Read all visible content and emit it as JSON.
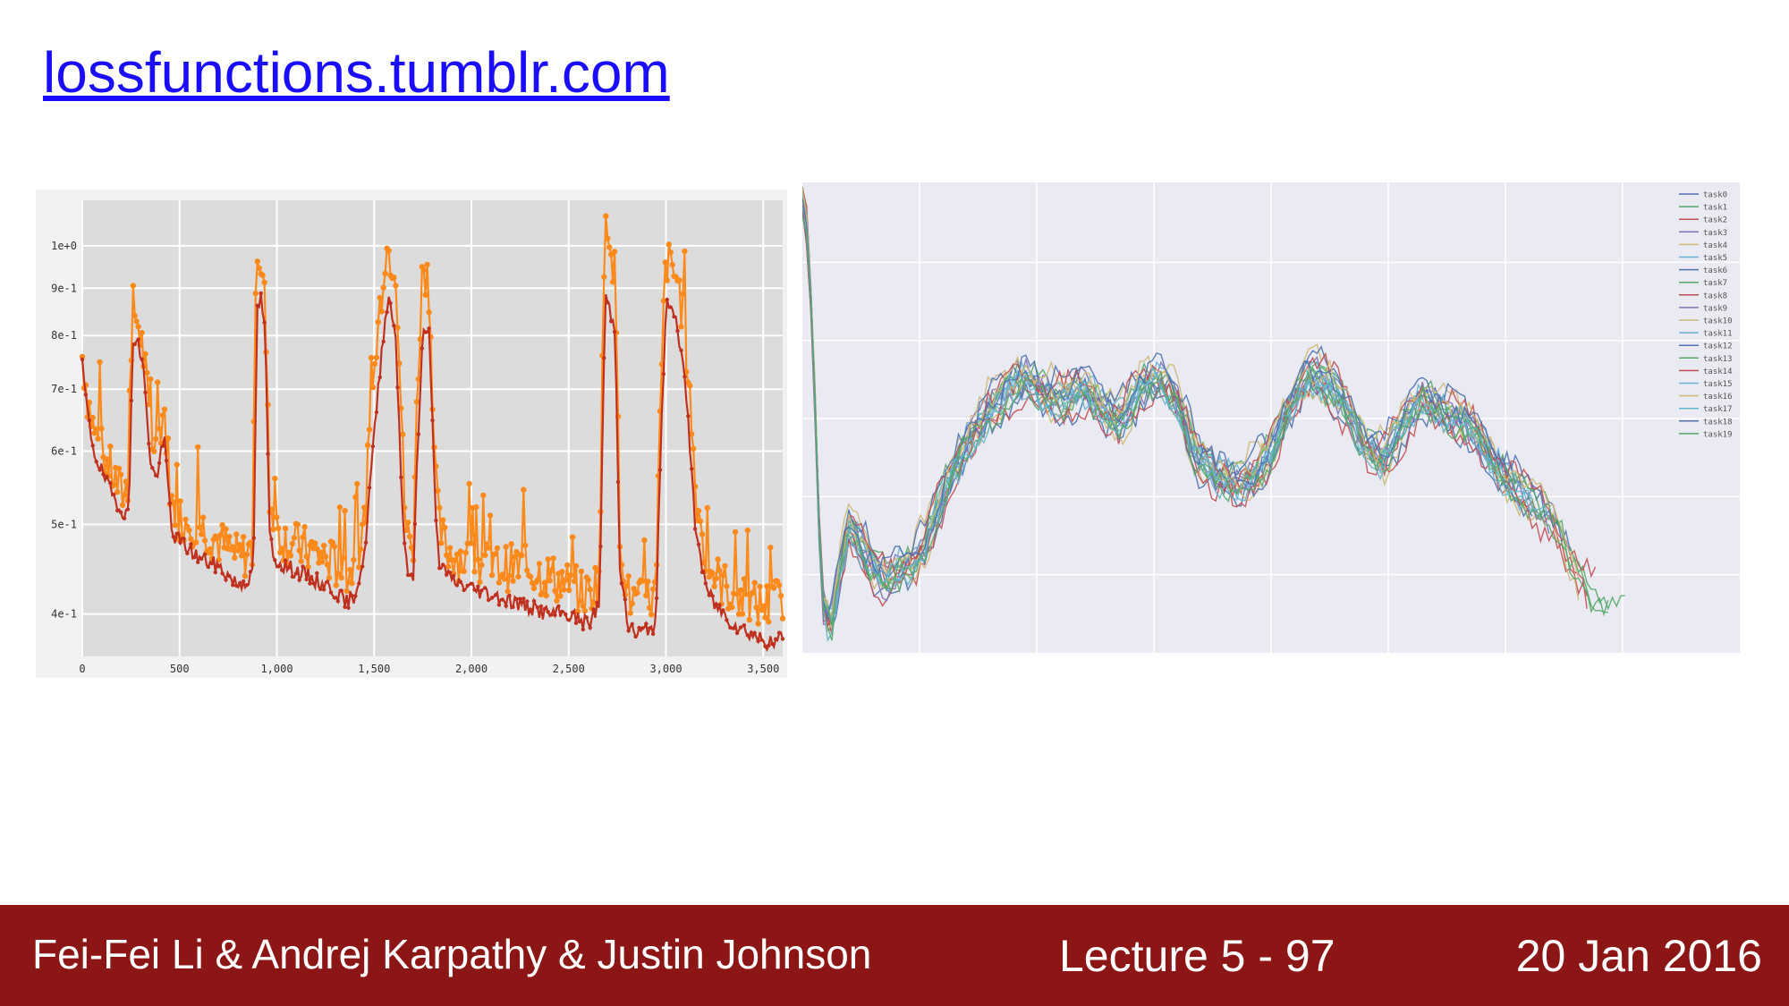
{
  "slide": {
    "link_text": "lossfunctions.tumblr.com",
    "footer": {
      "authors": "Fei-Fei Li & Andrej Karpathy & Justin Johnson",
      "lecture": "Lecture 5 - 97",
      "date": "20 Jan 2016"
    }
  },
  "colors": {
    "footer_bg": "#8c1515",
    "link": "#1a0dff",
    "left_plot_bg": "#dcdcdc",
    "left_raw": "#ff8a1c",
    "left_smooth": "#c0301e",
    "right_plot_bg": "#eaeaf2"
  },
  "chart_data": [
    {
      "type": "line",
      "y_scale": "log",
      "xlim": [
        0,
        3600
      ],
      "ylim": [
        0.36,
        1.12
      ],
      "x_ticks": [
        0,
        500,
        1000,
        1500,
        2000,
        2500,
        3000,
        3500
      ],
      "x_tick_labels": [
        "0",
        "500",
        "1,000",
        "1,500",
        "2,000",
        "2,500",
        "3,000",
        "3,500"
      ],
      "y_ticks": [
        0.4,
        0.5,
        0.6,
        0.7,
        0.8,
        0.9,
        1.0
      ],
      "y_tick_labels": [
        "4e-1",
        "5e-1",
        "6e-1",
        "7e-1",
        "8e-1",
        "9e-1",
        "1e+0"
      ],
      "grid": true,
      "series": [
        {
          "role": "raw",
          "color": "#ff8a1c",
          "x": [
            0,
            30,
            60,
            100,
            150,
            200,
            240,
            260,
            290,
            320,
            350,
            380,
            420,
            460,
            500,
            600,
            700,
            800,
            880,
            900,
            920,
            940,
            960,
            980,
            1050,
            1150,
            1250,
            1320,
            1350,
            1400,
            1450,
            1500,
            1560,
            1580,
            1610,
            1640,
            1660,
            1680,
            1700,
            1750,
            1780,
            1810,
            1830,
            1870,
            1950,
            2100,
            2250,
            2400,
            2500,
            2600,
            2660,
            2690,
            2720,
            2740,
            2760,
            2800,
            2850,
            2950,
            3000,
            3020,
            3060,
            3100,
            3150,
            3200,
            3250,
            3350,
            3450,
            3550,
            3600
          ],
          "y": [
            0.76,
            0.68,
            0.63,
            0.6,
            0.57,
            0.54,
            0.55,
            0.86,
            0.82,
            0.75,
            0.62,
            0.6,
            0.67,
            0.52,
            0.51,
            0.5,
            0.48,
            0.46,
            0.47,
            1.0,
            0.95,
            0.86,
            0.55,
            0.5,
            0.48,
            0.47,
            0.46,
            0.45,
            0.44,
            0.45,
            0.5,
            0.72,
            1.0,
            0.98,
            0.96,
            0.65,
            0.5,
            0.48,
            0.47,
            0.96,
            0.92,
            0.6,
            0.5,
            0.47,
            0.46,
            0.45,
            0.45,
            0.44,
            0.43,
            0.42,
            0.44,
            1.1,
            1.0,
            0.92,
            0.5,
            0.42,
            0.41,
            0.42,
            0.97,
            0.95,
            0.92,
            0.8,
            0.55,
            0.46,
            0.44,
            0.42,
            0.41,
            0.41,
            0.42
          ]
        },
        {
          "role": "smoothed",
          "color": "#c0301e",
          "x": [
            0,
            30,
            60,
            100,
            150,
            200,
            240,
            260,
            290,
            320,
            350,
            380,
            420,
            460,
            500,
            600,
            700,
            800,
            880,
            900,
            920,
            940,
            960,
            980,
            1050,
            1150,
            1250,
            1320,
            1350,
            1400,
            1450,
            1500,
            1560,
            1580,
            1610,
            1640,
            1660,
            1680,
            1700,
            1750,
            1780,
            1810,
            1830,
            1870,
            1950,
            2100,
            2250,
            2400,
            2500,
            2600,
            2660,
            2690,
            2720,
            2740,
            2760,
            2800,
            2850,
            2950,
            3000,
            3020,
            3060,
            3100,
            3150,
            3200,
            3250,
            3350,
            3450,
            3550,
            3600
          ],
          "y": [
            0.74,
            0.65,
            0.6,
            0.57,
            0.54,
            0.52,
            0.51,
            0.8,
            0.78,
            0.72,
            0.58,
            0.56,
            0.62,
            0.49,
            0.48,
            0.46,
            0.45,
            0.43,
            0.44,
            0.85,
            0.88,
            0.8,
            0.5,
            0.46,
            0.45,
            0.44,
            0.43,
            0.42,
            0.41,
            0.42,
            0.46,
            0.62,
            0.85,
            0.88,
            0.8,
            0.55,
            0.46,
            0.44,
            0.43,
            0.8,
            0.82,
            0.55,
            0.46,
            0.44,
            0.43,
            0.42,
            0.41,
            0.4,
            0.4,
            0.39,
            0.41,
            0.88,
            0.84,
            0.8,
            0.46,
            0.39,
            0.38,
            0.39,
            0.85,
            0.88,
            0.82,
            0.7,
            0.5,
            0.43,
            0.41,
            0.39,
            0.38,
            0.37,
            0.38
          ]
        }
      ]
    },
    {
      "type": "line",
      "xlim": [
        0,
        100
      ],
      "ylim": [
        0,
        100
      ],
      "grid": true,
      "legend_position": "top-right",
      "legend": [
        "task0",
        "task1",
        "task2",
        "task3",
        "task4",
        "task5",
        "task6",
        "task7",
        "task8",
        "task9",
        "task10",
        "task11",
        "task12",
        "task13",
        "task14",
        "task15",
        "task16",
        "task17",
        "task18",
        "task19"
      ],
      "series_colors": [
        "#4c72b0",
        "#55a868",
        "#c44e52",
        "#8172b2",
        "#ccb974",
        "#64b5cd",
        "#4c72b0",
        "#55a868",
        "#c44e52",
        "#8172b2",
        "#ccb974",
        "#64b5cd",
        "#4c72b0",
        "#55a868",
        "#c44e52",
        "#64b5cd",
        "#ccb974",
        "#64b5cd",
        "#4c72b0",
        "#55a868"
      ],
      "shared_trend": {
        "x": [
          0,
          0.5,
          1,
          1.5,
          2,
          3,
          4,
          5,
          6,
          7,
          8,
          9,
          10,
          12,
          14,
          16,
          18,
          20,
          22,
          24,
          26,
          28,
          30,
          32,
          34,
          36,
          38,
          40,
          42,
          44,
          46,
          48,
          50,
          52,
          54,
          56,
          58,
          60,
          62,
          64,
          66,
          68,
          70,
          72,
          74,
          76,
          78,
          80,
          82,
          84,
          86,
          88,
          90
        ],
        "y": [
          97,
          90,
          72,
          45,
          12,
          5,
          18,
          28,
          24,
          20,
          17,
          15,
          17,
          20,
          28,
          38,
          46,
          52,
          56,
          58,
          55,
          54,
          56,
          52,
          50,
          56,
          58,
          54,
          42,
          38,
          36,
          38,
          42,
          52,
          60,
          58,
          52,
          44,
          42,
          48,
          54,
          52,
          50,
          46,
          40,
          36,
          32,
          28,
          20,
          14,
          10,
          16,
          28
        ]
      },
      "series_x_end": [
        77,
        80,
        84,
        81,
        83,
        77,
        78,
        86,
        84,
        80,
        74,
        79,
        82,
        88,
        85,
        78,
        83,
        80,
        76,
        86
      ]
    }
  ]
}
